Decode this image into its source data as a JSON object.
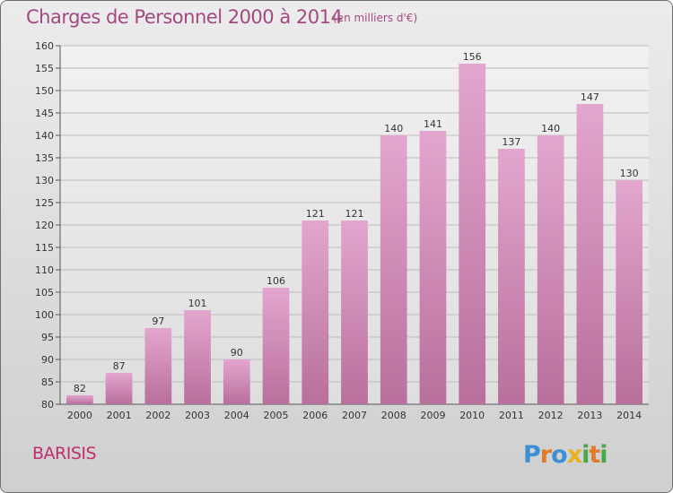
{
  "header": {
    "title": "Charges de Personnel 2000 à 2014",
    "unit": "(en milliers d'€)"
  },
  "footer": {
    "location": "BARISIS",
    "brand": "Proxiti"
  },
  "colors": {
    "bar_top": "#e3a6cf",
    "bar_bottom": "#b86f9c",
    "title": "#a14a80",
    "location": "#c0306e",
    "axis_text": "#333333"
  },
  "chart_data": {
    "type": "bar",
    "title": "Charges de Personnel 2000 à 2014",
    "subtitle": "(en milliers d'€)",
    "categories": [
      "2000",
      "2001",
      "2002",
      "2003",
      "2004",
      "2005",
      "2006",
      "2007",
      "2008",
      "2009",
      "2010",
      "2011",
      "2012",
      "2013",
      "2014"
    ],
    "values": [
      82,
      87,
      97,
      101,
      90,
      106,
      121,
      121,
      140,
      141,
      156,
      137,
      140,
      147,
      130
    ],
    "ylim": [
      80,
      160
    ],
    "yticks": [
      80,
      85,
      90,
      95,
      100,
      105,
      110,
      115,
      120,
      125,
      130,
      135,
      140,
      145,
      150,
      155,
      160
    ],
    "grid": true,
    "data_labels": true
  }
}
